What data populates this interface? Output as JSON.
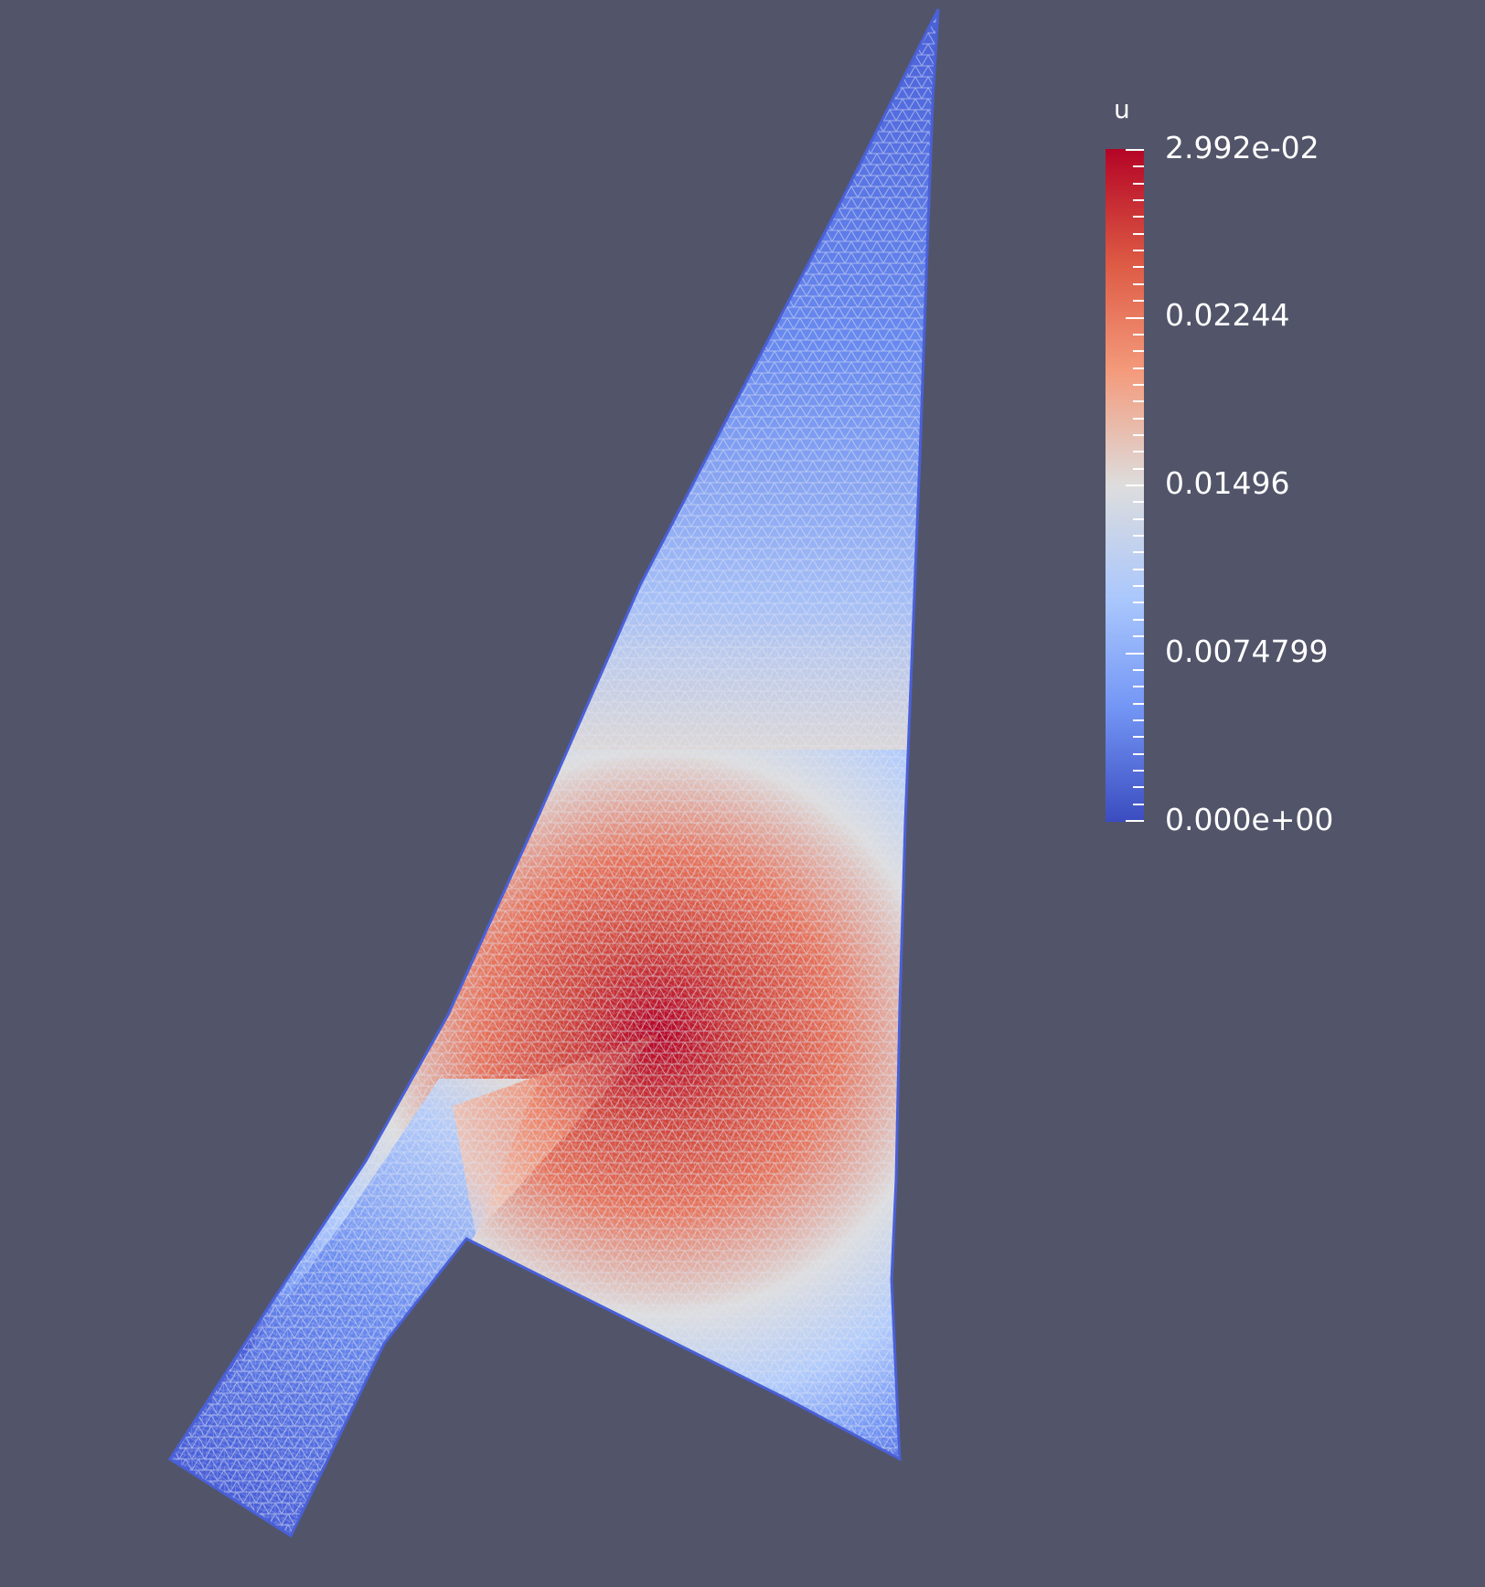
{
  "viewport": {
    "background": "#525569"
  },
  "mesh": {
    "field": "u",
    "colormap": "cool-to-warm",
    "colormap_stops": [
      "#3b4cc0",
      "#7396f5",
      "#b0cbfc",
      "#dddddd",
      "#f6bfa6",
      "#e7745b",
      "#b40426"
    ],
    "peak_value": 0.02992,
    "edge_color": "#4a60d8"
  },
  "colorbar": {
    "title": "u",
    "range": [
      0.0,
      0.02992
    ],
    "labels": [
      "2.992e-02",
      "0.02244",
      "0.01496",
      "0.0074799",
      "0.000e+00"
    ]
  }
}
